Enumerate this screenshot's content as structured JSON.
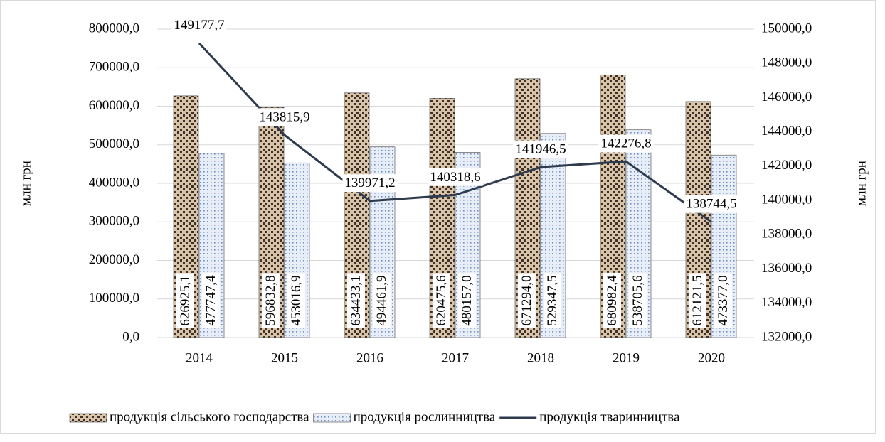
{
  "chart_data": {
    "type": "bar_line",
    "y_label": "млн грн",
    "y2_label": "млн грн",
    "categories": [
      "2014",
      "2015",
      "2016",
      "2017",
      "2018",
      "2019",
      "2020"
    ],
    "series": [
      {
        "name": "продукція сільського господарства",
        "type": "bar",
        "color": "#5b4a3b",
        "values": [
          626925.1,
          596832.8,
          634433.1,
          620475.6,
          671294.0,
          680982.4,
          612121.5
        ],
        "value_labels": [
          "626925,1",
          "596832,8",
          "634433,1",
          "620475,6",
          "671294,0",
          "680982,4",
          "612121,5"
        ]
      },
      {
        "name": "продукція рослинництва",
        "type": "bar",
        "color": "#8fa8d0",
        "values": [
          477747.4,
          453016.9,
          494461.9,
          480157.0,
          529347.5,
          538705.6,
          473377.0
        ],
        "value_labels": [
          "477747,4",
          "453016,9",
          "494461,9",
          "480157,0",
          "529347,5",
          "538705,6",
          "473377,0"
        ]
      },
      {
        "name": "продукція тваринництва",
        "type": "line",
        "axis": "y2",
        "color": "#2e3b4e",
        "values": [
          149177.7,
          143815.9,
          139971.2,
          140318.6,
          141946.5,
          142276.8,
          138744.5
        ],
        "value_labels": [
          "149177,7",
          "143815,9",
          "139971,2",
          "140318,6",
          "141946,5",
          "142276,8",
          "138744,5"
        ]
      }
    ],
    "ylim": [
      0,
      800000
    ],
    "yticks": [
      {
        "value": 0,
        "label": "0,0"
      },
      {
        "value": 100000,
        "label": "100000,0"
      },
      {
        "value": 200000,
        "label": "200000,0"
      },
      {
        "value": 300000,
        "label": "300000,0"
      },
      {
        "value": 400000,
        "label": "400000,0"
      },
      {
        "value": 500000,
        "label": "500000,0"
      },
      {
        "value": 600000,
        "label": "600000,0"
      },
      {
        "value": 700000,
        "label": "700000,0"
      },
      {
        "value": 800000,
        "label": "800000,0"
      }
    ],
    "y2lim": [
      132000,
      150000
    ],
    "y2ticks": [
      {
        "value": 132000,
        "label": "132000,0"
      },
      {
        "value": 134000,
        "label": "134000,0"
      },
      {
        "value": 136000,
        "label": "136000,0"
      },
      {
        "value": 138000,
        "label": "138000,0"
      },
      {
        "value": 140000,
        "label": "140000,0"
      },
      {
        "value": 142000,
        "label": "142000,0"
      },
      {
        "value": 144000,
        "label": "144000,0"
      },
      {
        "value": 146000,
        "label": "146000,0"
      },
      {
        "value": 148000,
        "label": "148000,0"
      },
      {
        "value": 150000,
        "label": "150000,0"
      }
    ],
    "grid": true,
    "legend": "bottom"
  }
}
